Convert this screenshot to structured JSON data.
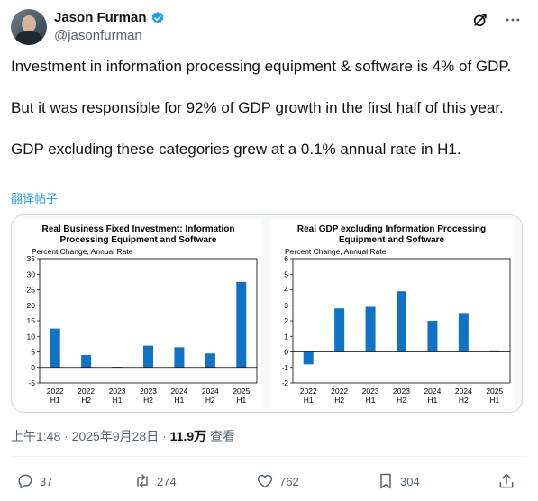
{
  "tweet": {
    "author_name": "Jason Furman",
    "handle": "@jasonfurman",
    "paragraphs": [
      "Investment in information processing equipment & software is 4% of GDP.",
      "But it was responsible for 92% of GDP growth in the first half of this year.",
      "GDP excluding these categories grew at a 0.1% annual rate in H1."
    ],
    "translate_label": "翻译帖子",
    "time": "上午1:48",
    "date": "2025年9月28日",
    "views_count": "11.9万",
    "views_label": "查看",
    "separator": "·"
  },
  "actions": {
    "replies": "37",
    "reposts": "274",
    "likes": "762",
    "bookmarks": "304"
  },
  "colors": {
    "accent": "#1d9bf0",
    "bar": "#0f72c4"
  },
  "chart_data": [
    {
      "type": "bar",
      "title_line1": "Real Business Fixed Investment: Information",
      "title_line2": "Processing Equipment and Software",
      "ylabel": "Percent Change, Annual Rate",
      "categories_year": [
        "2022",
        "2022",
        "2023",
        "2023",
        "2024",
        "2024",
        "2025"
      ],
      "categories_half": [
        "H1",
        "H2",
        "H1",
        "H2",
        "H1",
        "H2",
        "H1"
      ],
      "values": [
        12.5,
        4,
        0.2,
        7,
        6.5,
        4.5,
        27.5
      ],
      "ylim": [
        -5,
        35
      ],
      "yticks": [
        "-5",
        "0",
        "5",
        "10",
        "15",
        "20",
        "25",
        "30",
        "35"
      ]
    },
    {
      "type": "bar",
      "title_line1": "Real GDP excluding Information Processing",
      "title_line2": "Equipment and Software",
      "ylabel": "Percent Change, Annual Rate",
      "categories_year": [
        "2022",
        "2022",
        "2023",
        "2023",
        "2024",
        "2024",
        "2025"
      ],
      "categories_half": [
        "H1",
        "H2",
        "H1",
        "H2",
        "H1",
        "H2",
        "H1"
      ],
      "values": [
        -0.8,
        2.8,
        2.9,
        3.9,
        2.0,
        2.5,
        0.1
      ],
      "ylim": [
        -2,
        6
      ],
      "yticks": [
        "-2",
        "-1",
        "0",
        "1",
        "2",
        "3",
        "4",
        "5",
        "6"
      ]
    }
  ]
}
